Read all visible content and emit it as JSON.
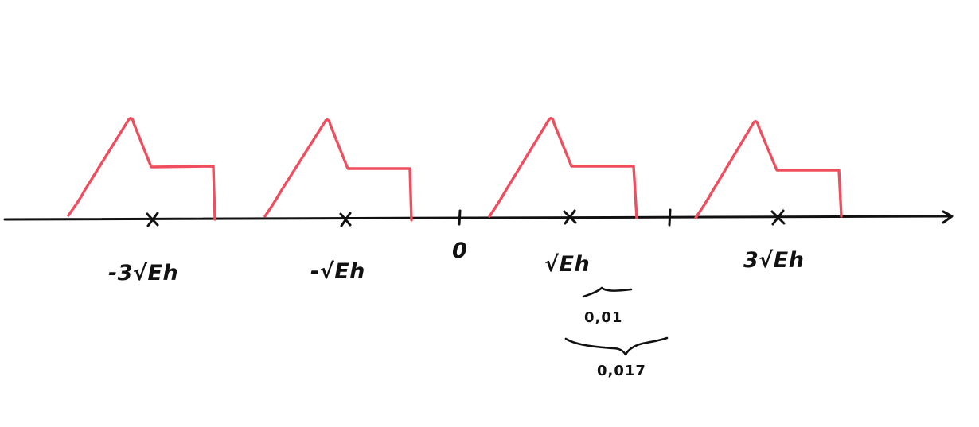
{
  "diagram": {
    "axis_marks": [
      {
        "kind": "tick",
        "label": "0"
      },
      {
        "kind": "cross",
        "label": "-3√Eh"
      },
      {
        "kind": "cross",
        "label": "-√Eh"
      },
      {
        "kind": "cross",
        "label": "√Eh"
      },
      {
        "kind": "cross",
        "label": "3√Eh"
      },
      {
        "kind": "tick",
        "label": ""
      }
    ],
    "widths": [
      {
        "label": "0,01"
      },
      {
        "label": "0,017"
      }
    ],
    "colors": {
      "axis": "#111111",
      "pulse": "#f04e5e"
    }
  }
}
